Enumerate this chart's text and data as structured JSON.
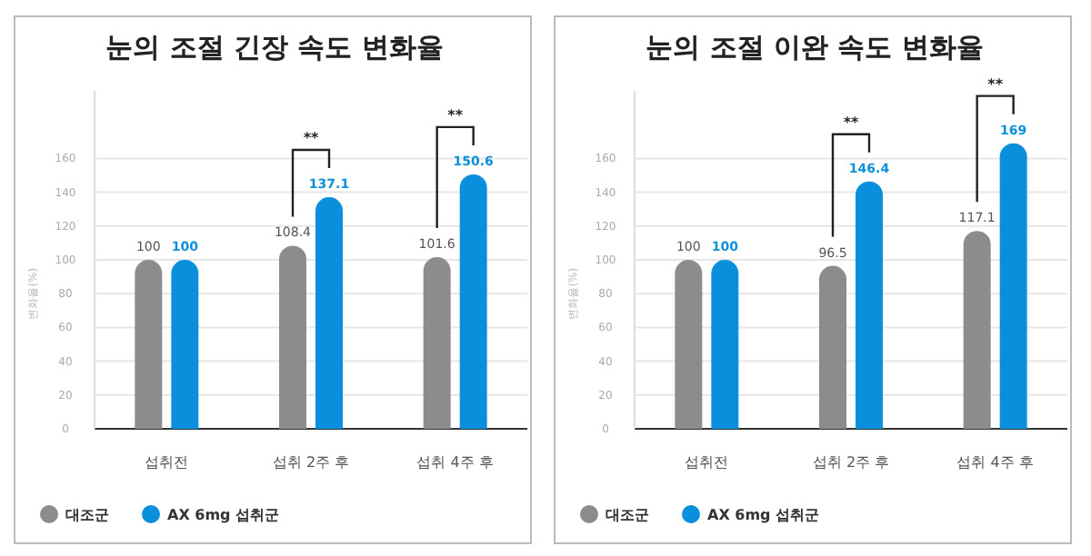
{
  "chart_data": [
    {
      "type": "bar",
      "title": "눈의 조절 긴장 속도 변화율",
      "ylabel": "변화율(%)",
      "categories": [
        "섭취전",
        "섭취 2주 후",
        "섭취 4주 후"
      ],
      "series": [
        {
          "name": "대조군",
          "color": "#8c8c8c",
          "values": [
            100,
            108.4,
            101.6
          ]
        },
        {
          "name": "AX 6mg 섭취군",
          "color": "#0a8fdc",
          "values": [
            100,
            137.1,
            150.6
          ]
        }
      ],
      "ylim": [
        0,
        200
      ],
      "yticks": [
        0,
        20,
        40,
        60,
        80,
        100,
        120,
        140,
        160
      ],
      "grid": "y",
      "data_labels": true,
      "legend": "bottom left",
      "annotations": [
        "**",
        "**"
      ]
    },
    {
      "type": "bar",
      "title": "눈의 조절 이완 속도 변화율",
      "ylabel": "변화율(%)",
      "categories": [
        "섭취전",
        "섭취 2주 후",
        "섭취 4주 후"
      ],
      "series": [
        {
          "name": "대조군",
          "color": "#8c8c8c",
          "values": [
            100,
            96.5,
            117.1
          ]
        },
        {
          "name": "AX 6mg 섭취군",
          "color": "#0a8fdc",
          "values": [
            100,
            146.4,
            169
          ]
        }
      ],
      "ylim": [
        0,
        200
      ],
      "yticks": [
        0,
        20,
        40,
        60,
        80,
        100,
        120,
        140,
        160
      ],
      "grid": "y",
      "data_labels": true,
      "legend": "bottom left",
      "annotations": [
        "**",
        "**"
      ]
    }
  ]
}
